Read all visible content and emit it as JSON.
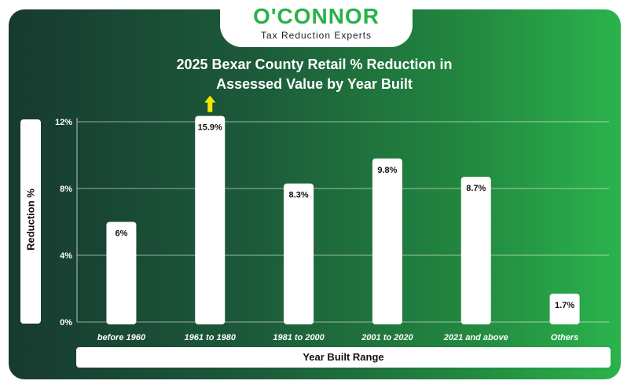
{
  "brand": {
    "name": "O'CONNOR",
    "tagline": "Tax Reduction Experts",
    "accent_color": "#2ab14a"
  },
  "chart_data": {
    "type": "bar",
    "title": "2025 Bexar County Retail % Reduction in Assessed Value by Year Built",
    "title_lines": [
      "2025 Bexar County Retail % Reduction in",
      "Assessed Value by Year Built"
    ],
    "xlabel": "Year Built Range",
    "ylabel": "Reduction %",
    "categories": [
      "before 1960",
      "1961 to 1980",
      "1981 to 2000",
      "2001 to 2020",
      "2021 and above",
      "Others"
    ],
    "values": [
      6,
      15.9,
      8.3,
      9.8,
      8.7,
      1.7
    ],
    "value_labels": [
      "6%",
      "15.9%",
      "8.3%",
      "9.8%",
      "8.7%",
      "1.7%"
    ],
    "yticks": [
      0,
      4,
      8,
      12
    ],
    "ytick_labels": [
      "0%",
      "4%",
      "8%",
      "12%"
    ],
    "ylim": [
      0,
      12
    ],
    "grid": true,
    "bar_color": "#ffffff",
    "overflow_indicator_color": "#f5e600",
    "overflow_indicator_index": 1
  }
}
